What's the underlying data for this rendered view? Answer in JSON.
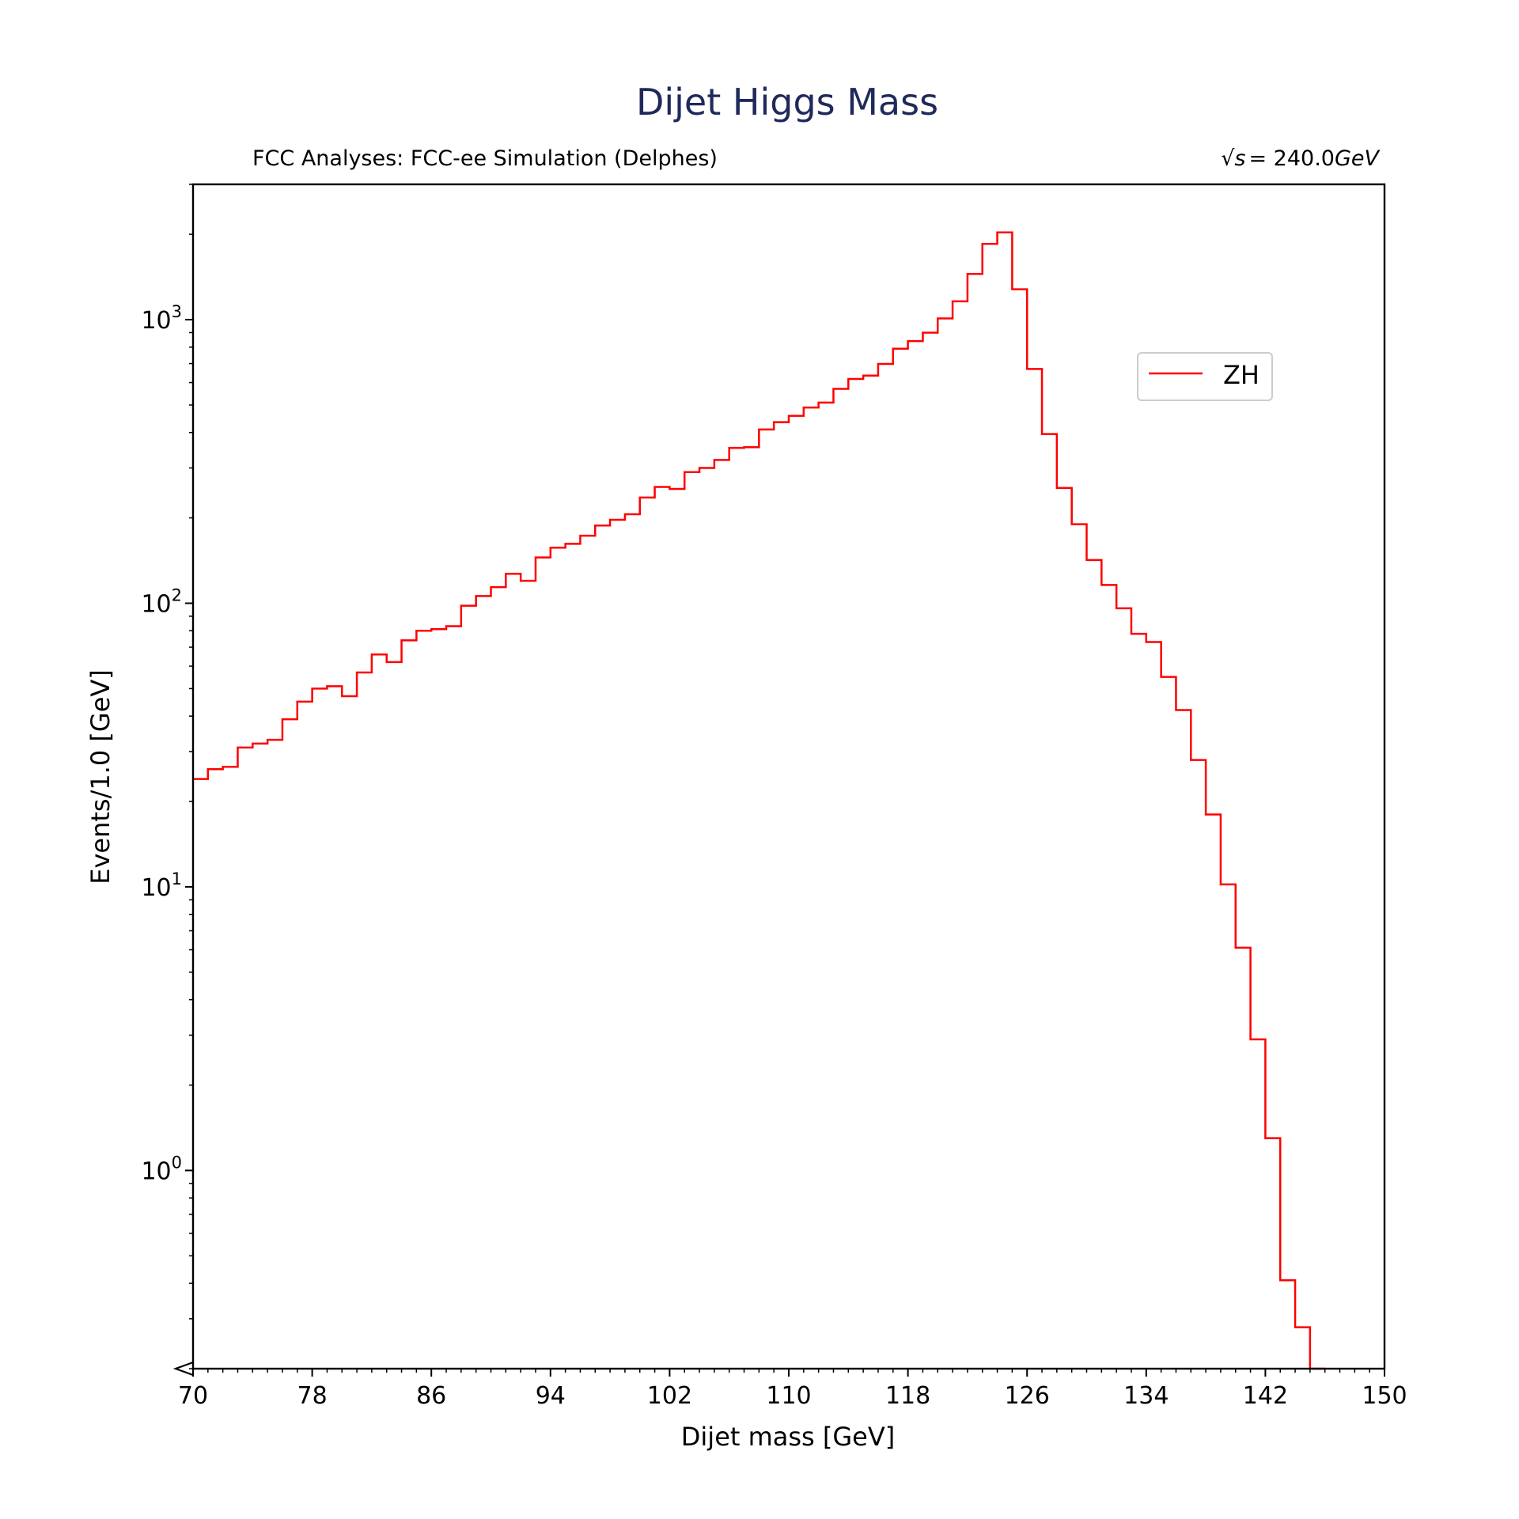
{
  "chart_data": {
    "type": "line",
    "step": "histogram",
    "title": "Dijet Higgs Mass",
    "subtitle_left": "FCC Analyses: FCC-ee Simulation (Delphes)",
    "subtitle_right_prefix": "√s",
    "subtitle_right_value": "= 240.0",
    "subtitle_right_unit": "GeV",
    "xlabel": "Dijet mass [GeV]",
    "ylabel": "Events/1.0 [GeV]",
    "xlim": [
      70,
      150
    ],
    "ylim": [
      0.2,
      3000
    ],
    "yscale": "log",
    "x_ticks": [
      {
        "value": 70,
        "label": "70"
      },
      {
        "value": 78,
        "label": "78"
      },
      {
        "value": 86,
        "label": "86"
      },
      {
        "value": 94,
        "label": "94"
      },
      {
        "value": 102,
        "label": "102"
      },
      {
        "value": 110,
        "label": "110"
      },
      {
        "value": 118,
        "label": "118"
      },
      {
        "value": 126,
        "label": "126"
      },
      {
        "value": 134,
        "label": "134"
      },
      {
        "value": 142,
        "label": "142"
      },
      {
        "value": 150,
        "label": "150"
      }
    ],
    "y_ticks": [
      {
        "value": 1,
        "base": "10",
        "exp": "0"
      },
      {
        "value": 10,
        "base": "10",
        "exp": "1"
      },
      {
        "value": 100,
        "base": "10",
        "exp": "2"
      },
      {
        "value": 1000,
        "base": "10",
        "exp": "3"
      }
    ],
    "legend": {
      "position": "upper-right",
      "entries": [
        "ZH"
      ]
    },
    "grid": false,
    "series": [
      {
        "name": "ZH",
        "color": "#ff0000",
        "bin_edges_start": 70,
        "bin_width": 1.0,
        "values": [
          24,
          26,
          26.5,
          31,
          32,
          33,
          39,
          45,
          50,
          51,
          47,
          57,
          66,
          62,
          74,
          80,
          81,
          83,
          98,
          106,
          114,
          127,
          120,
          145,
          157,
          162,
          173,
          188,
          197,
          206,
          236,
          257,
          253,
          290,
          300,
          320,
          353,
          355,
          410,
          435,
          458,
          490,
          510,
          570,
          618,
          635,
          698,
          790,
          840,
          900,
          1010,
          1160,
          1450,
          1850,
          2030,
          1280,
          670,
          395,
          255,
          190,
          142,
          116,
          96,
          78,
          73,
          55,
          42,
          28,
          18,
          10.2,
          6.1,
          2.9,
          1.3,
          0.41,
          0.28,
          0.2
        ]
      }
    ],
    "colors": {
      "title": "#1f2a5a",
      "axes": "#000000",
      "line": "#ff0000"
    }
  }
}
